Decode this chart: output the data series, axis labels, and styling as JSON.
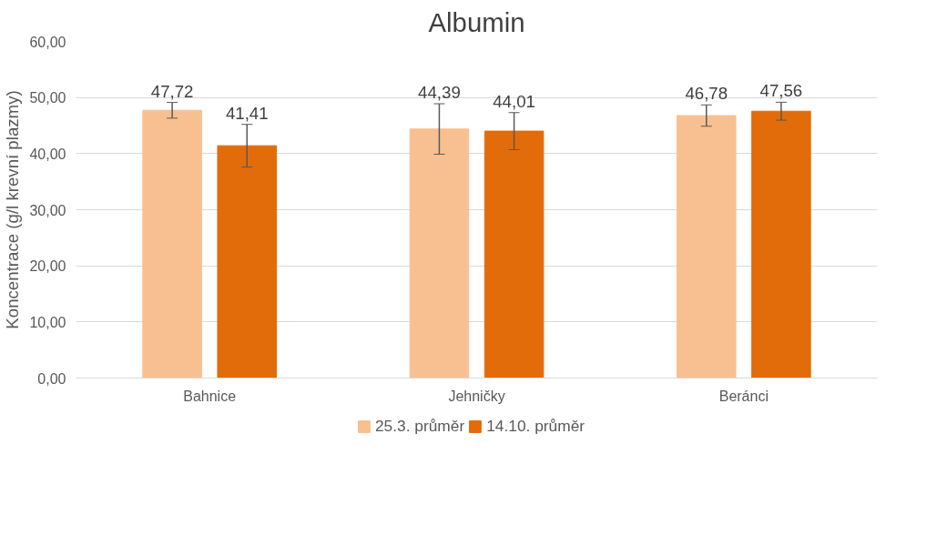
{
  "chart_data": {
    "type": "bar",
    "title": "Albumin",
    "ylabel": "Koncentrace (g/l krevní plazmy)",
    "categories": [
      "Bahnice",
      "Jehničky",
      "Beránci"
    ],
    "series": [
      {
        "name": "25.3. průměr",
        "color": "#f8c090",
        "values": [
          47.72,
          44.39,
          46.78
        ],
        "errors": [
          1.4,
          4.5,
          1.9
        ],
        "value_labels": [
          "47,72",
          "44,39",
          "46,78"
        ]
      },
      {
        "name": "14.10. průměr",
        "color": "#e36c0a",
        "values": [
          41.41,
          44.01,
          47.56
        ],
        "errors": [
          3.8,
          3.3,
          1.6
        ],
        "value_labels": [
          "41,41",
          "44,01",
          "47,56"
        ]
      }
    ],
    "ylim": [
      0,
      60
    ],
    "yticks": [
      {
        "value": 0,
        "label": "0,00"
      },
      {
        "value": 10,
        "label": "10,00"
      },
      {
        "value": 20,
        "label": "20,00"
      },
      {
        "value": 30,
        "label": "30,00"
      },
      {
        "value": 40,
        "label": "40,00"
      },
      {
        "value": 50,
        "label": "50,00"
      },
      {
        "value": 60,
        "label": "60,00"
      }
    ],
    "grid": "y",
    "legend": "bottom"
  }
}
